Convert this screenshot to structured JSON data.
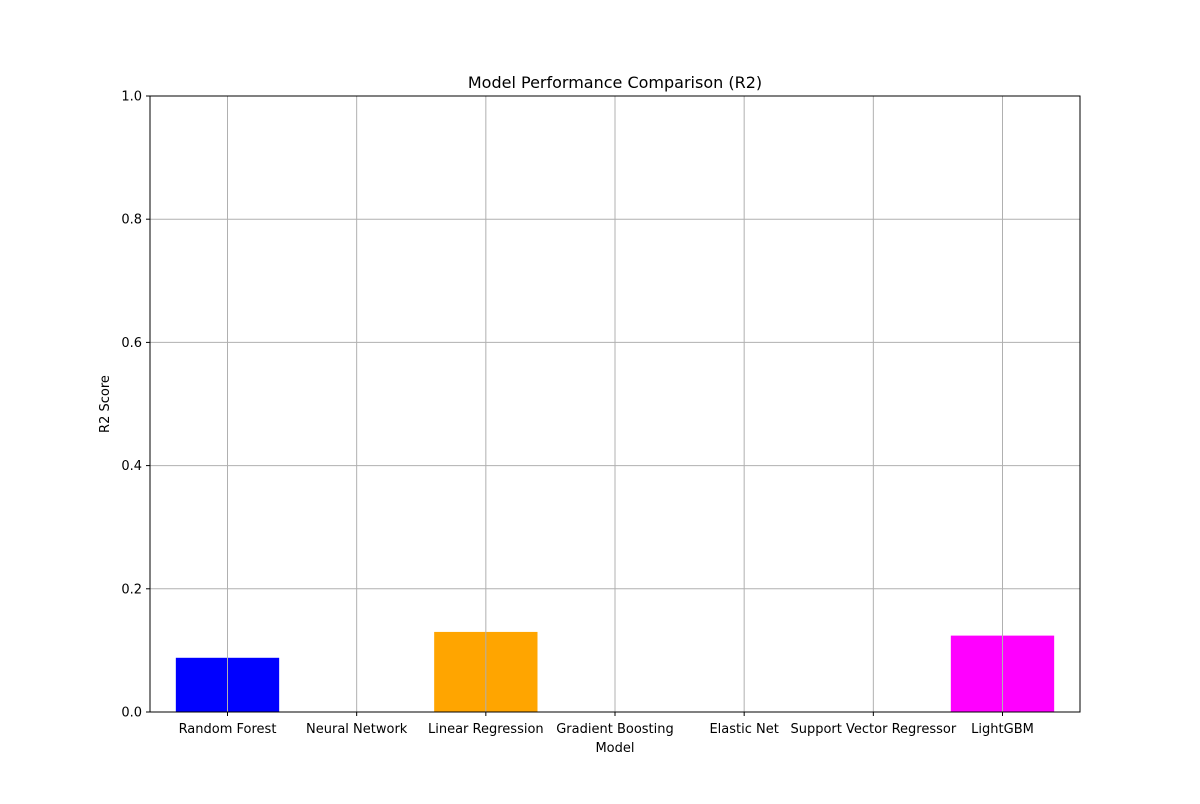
{
  "chart_data": {
    "type": "bar",
    "title": "Model Performance Comparison (R2)",
    "xlabel": "Model",
    "ylabel": "R2 Score",
    "categories": [
      "Random Forest",
      "Neural Network",
      "Linear Regression",
      "Gradient Boosting",
      "Elastic Net",
      "Support Vector Regressor",
      "LightGBM"
    ],
    "values": [
      0.088,
      0,
      0.13,
      0,
      0,
      0,
      0.124
    ],
    "colors": [
      "#0000ff",
      "#000000",
      "#ffa500",
      "#008000",
      "#ff0000",
      "#800080",
      "#ff00ff"
    ],
    "ylim": [
      0,
      1.0
    ],
    "yticks": [
      "0.0",
      "0.2",
      "0.4",
      "0.6",
      "0.8",
      "1.0"
    ],
    "grid": true,
    "legend": "none"
  }
}
